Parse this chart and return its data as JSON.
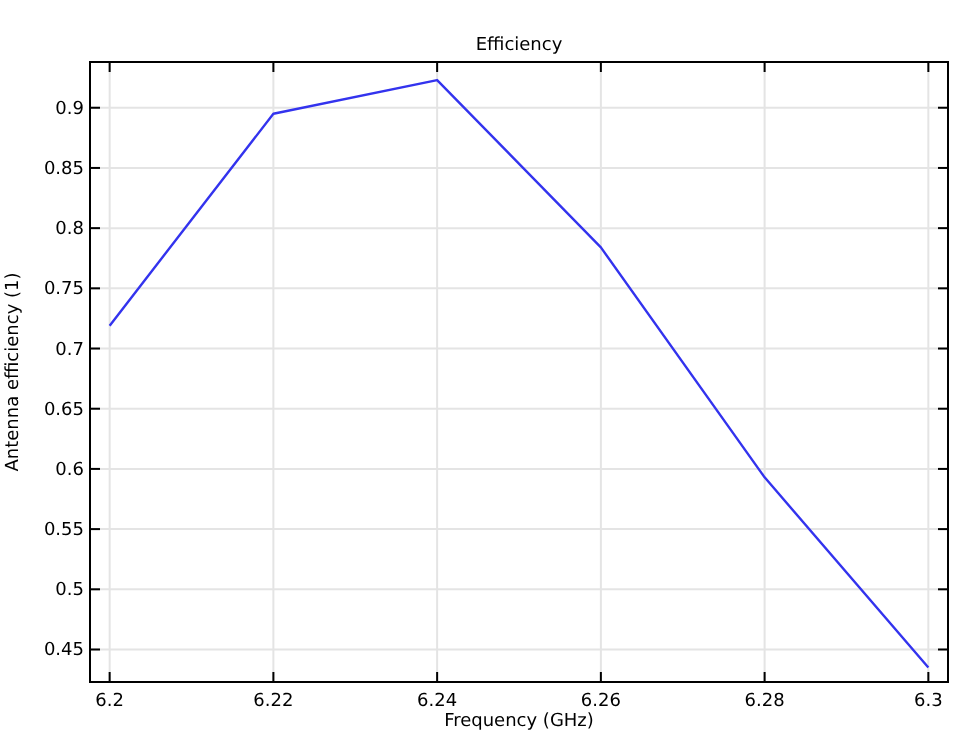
{
  "chart_data": {
    "type": "line",
    "title": "Efficiency",
    "xlabel": "Frequency (GHz)",
    "ylabel": "Antenna efficiency (1)",
    "x": [
      6.2,
      6.22,
      6.24,
      6.26,
      6.28,
      6.3
    ],
    "series": [
      {
        "color": "#3333ee",
        "values": [
          0.719,
          0.895,
          0.923,
          0.784,
          0.593,
          0.435
        ]
      }
    ],
    "xlim": [
      6.1976,
      6.3024
    ],
    "xticks": [
      6.2,
      6.22,
      6.24,
      6.26,
      6.28,
      6.3
    ],
    "ylim": [
      0.423,
      0.938
    ],
    "yticks": [
      0.45,
      0.5,
      0.55,
      0.6,
      0.65,
      0.7,
      0.75,
      0.8,
      0.85,
      0.9
    ],
    "grid": true,
    "marker": "none",
    "line_style": "solid"
  }
}
